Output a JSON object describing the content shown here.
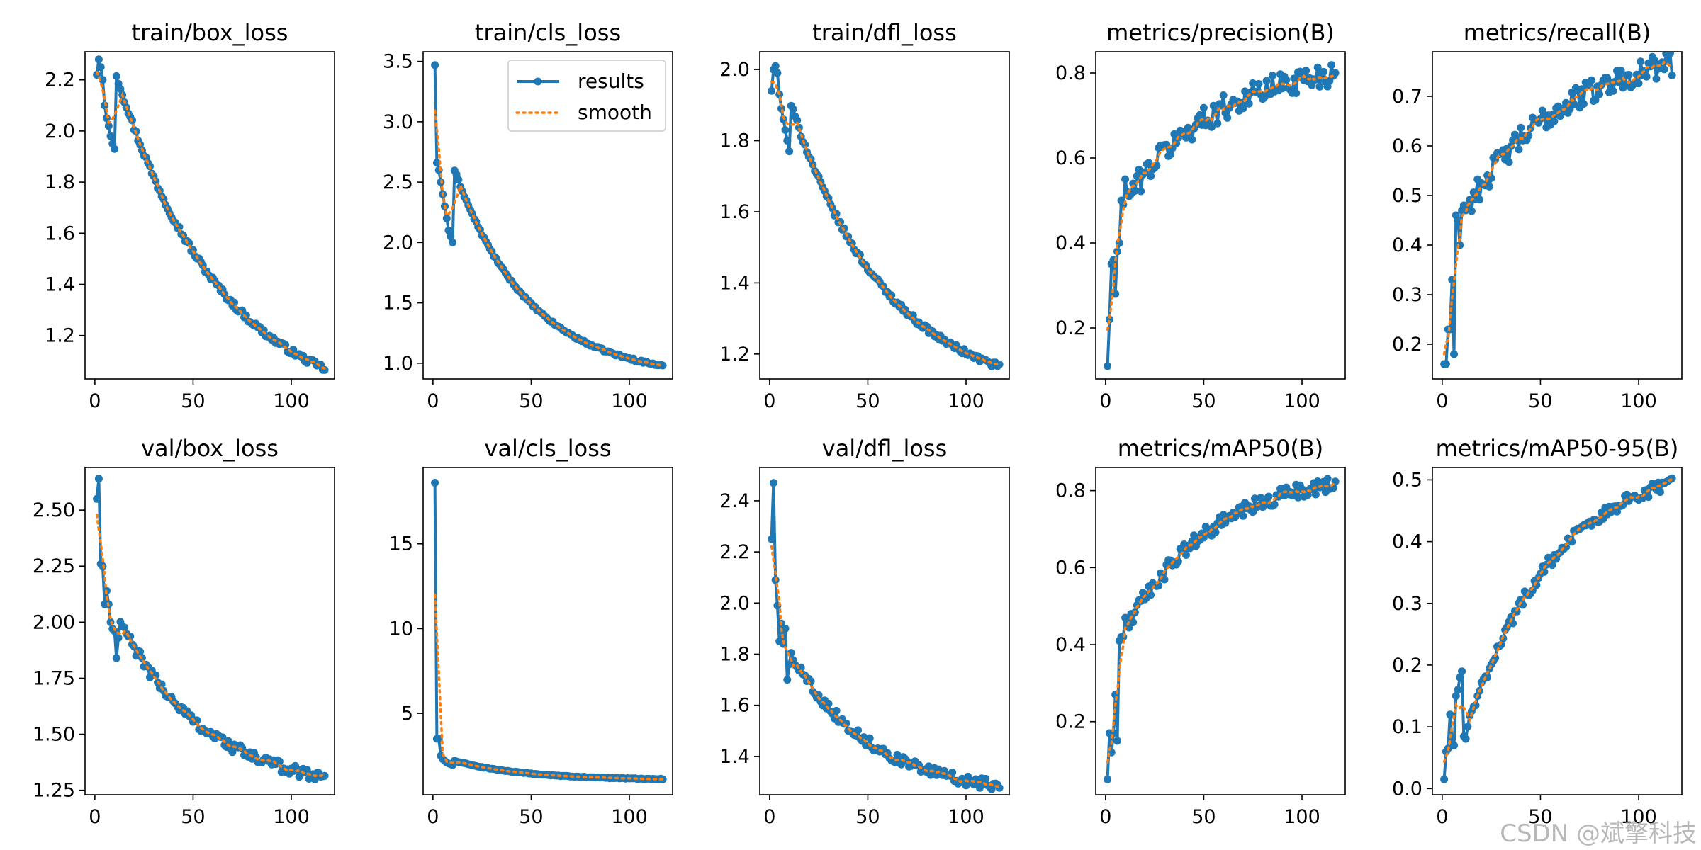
{
  "chart_data": [
    {
      "type": "line",
      "title": "train/box_loss",
      "ylim": [
        1.03,
        2.31
      ],
      "yticks": [
        1.2,
        1.4,
        1.6,
        1.8,
        2.0,
        2.2
      ],
      "ytick_labels": [
        "1.2",
        "1.4",
        "1.6",
        "1.8",
        "2.0",
        "2.2"
      ],
      "results": {
        "model": "decay",
        "start": 2.22,
        "end": 1.07,
        "k": 2.0,
        "noise": 0.012,
        "early": [
          2.22,
          2.28,
          2.25,
          2.2,
          2.1,
          2.05,
          2.02,
          1.98,
          1.95,
          1.93
        ]
      }
    },
    {
      "type": "line",
      "title": "train/cls_loss",
      "ylim": [
        0.87,
        3.58
      ],
      "yticks": [
        1.0,
        1.5,
        2.0,
        2.5,
        3.0,
        3.5
      ],
      "ytick_labels": [
        "1.0",
        "1.5",
        "2.0",
        "2.5",
        "3.0",
        "3.5"
      ],
      "legend": true,
      "results": {
        "model": "decay",
        "start": 2.6,
        "end": 0.98,
        "k": 2.8,
        "noise": 0.01,
        "early": [
          3.47,
          2.66,
          2.6,
          2.5,
          2.4,
          2.3,
          2.2,
          2.1,
          2.05,
          2.0
        ]
      }
    },
    {
      "type": "line",
      "title": "train/dfl_loss",
      "ylim": [
        1.13,
        2.05
      ],
      "yticks": [
        1.2,
        1.4,
        1.6,
        1.8,
        2.0
      ],
      "ytick_labels": [
        "1.2",
        "1.4",
        "1.6",
        "1.8",
        "2.0"
      ],
      "results": {
        "model": "decay",
        "start": 1.9,
        "end": 1.165,
        "k": 2.2,
        "noise": 0.008,
        "early": [
          1.94,
          2.0,
          2.01,
          1.99,
          1.93,
          1.89,
          1.86,
          1.83,
          1.8,
          1.77
        ]
      }
    },
    {
      "type": "line",
      "title": "metrics/precision(B)",
      "ylim": [
        0.08,
        0.85
      ],
      "yticks": [
        0.2,
        0.4,
        0.6,
        0.8
      ],
      "ytick_labels": [
        "0.2",
        "0.4",
        "0.6",
        "0.8"
      ],
      "results": {
        "model": "grow",
        "start": 0.52,
        "end": 0.8,
        "k": 2.2,
        "noise": 0.03,
        "early": [
          0.11,
          0.22,
          0.35,
          0.36,
          0.28,
          0.38,
          0.4,
          0.5,
          0.49,
          0.55,
          0.52,
          0.51
        ]
      }
    },
    {
      "type": "line",
      "title": "metrics/recall(B)",
      "ylim": [
        0.13,
        0.79
      ],
      "yticks": [
        0.2,
        0.3,
        0.4,
        0.5,
        0.6,
        0.7
      ],
      "ytick_labels": [
        "0.2",
        "0.3",
        "0.4",
        "0.5",
        "0.6",
        "0.7"
      ],
      "results": {
        "model": "grow",
        "start": 0.48,
        "end": 0.765,
        "k": 2.0,
        "noise": 0.025,
        "early": [
          0.16,
          0.16,
          0.23,
          0.23,
          0.33,
          0.18,
          0.46,
          0.45,
          0.4,
          0.47,
          0.48,
          0.47
        ]
      }
    },
    {
      "type": "line",
      "title": "val/box_loss",
      "ylim": [
        1.23,
        2.69
      ],
      "yticks": [
        1.25,
        1.5,
        1.75,
        2.0,
        2.25,
        2.5
      ],
      "ytick_labels": [
        "1.25",
        "1.50",
        "1.75",
        "2.00",
        "2.25",
        "2.50"
      ],
      "results": {
        "model": "decay",
        "start": 2.0,
        "end": 1.31,
        "k": 2.4,
        "noise": 0.025,
        "early": [
          2.55,
          2.64,
          2.26,
          2.25,
          2.08,
          2.14,
          2.08,
          2.0,
          1.97,
          1.96,
          1.84,
          1.93
        ]
      }
    },
    {
      "type": "line",
      "title": "val/cls_loss",
      "ylim": [
        0.2,
        19.5
      ],
      "yticks": [
        5,
        10,
        15
      ],
      "ytick_labels": [
        "5",
        "10",
        "15"
      ],
      "results": {
        "model": "decay",
        "start": 2.2,
        "end": 1.13,
        "k": 3.0,
        "noise": 0.02,
        "early": [
          18.6,
          3.5,
          3.5,
          2.5,
          2.3,
          2.2,
          2.1,
          2.05,
          2.0,
          1.95
        ]
      }
    },
    {
      "type": "line",
      "title": "val/dfl_loss",
      "ylim": [
        1.25,
        2.53
      ],
      "yticks": [
        1.4,
        1.6,
        1.8,
        2.0,
        2.2,
        2.4
      ],
      "ytick_labels": [
        "1.4",
        "1.6",
        "1.8",
        "2.0",
        "2.2",
        "2.4"
      ],
      "results": {
        "model": "decay",
        "start": 1.8,
        "end": 1.285,
        "k": 2.6,
        "noise": 0.02,
        "early": [
          2.25,
          2.47,
          2.09,
          1.99,
          1.85,
          1.92,
          1.84,
          1.9,
          1.7,
          1.76
        ]
      }
    },
    {
      "type": "line",
      "title": "metrics/mAP50(B)",
      "ylim": [
        0.01,
        0.86
      ],
      "yticks": [
        0.2,
        0.4,
        0.6,
        0.8
      ],
      "ytick_labels": [
        "0.2",
        "0.4",
        "0.6",
        "0.8"
      ],
      "results": {
        "model": "grow",
        "start": 0.45,
        "end": 0.82,
        "k": 2.3,
        "noise": 0.02,
        "early": [
          0.05,
          0.17,
          0.12,
          0.17,
          0.27,
          0.15,
          0.41,
          0.42,
          0.42,
          0.47
        ]
      }
    },
    {
      "type": "line",
      "title": "metrics/mAP50-95(B)",
      "ylim": [
        -0.01,
        0.52
      ],
      "yticks": [
        0.0,
        0.1,
        0.2,
        0.3,
        0.4,
        0.5
      ],
      "ytick_labels": [
        "0.0",
        "0.1",
        "0.2",
        "0.3",
        "0.4",
        "0.5"
      ],
      "results": {
        "model": "grow",
        "start": 0.08,
        "end": 0.495,
        "k": 2.4,
        "noise": 0.01,
        "early": [
          0.015,
          0.06,
          0.065,
          0.12,
          0.08,
          0.07,
          0.15,
          0.16,
          0.18,
          0.19
        ]
      }
    }
  ],
  "shared": {
    "epochs": 117,
    "xlim": [
      -5,
      122
    ],
    "xticks": [
      0,
      50,
      100
    ],
    "xtick_labels": [
      "0",
      "50",
      "100"
    ],
    "series_names": {
      "results": "results",
      "smooth": "smooth"
    },
    "colors": {
      "results": "#1f77b4",
      "smooth": "#ff7f0e",
      "axis": "#000000",
      "background": "#ffffff"
    }
  },
  "watermark": "CSDN @斌擎科技"
}
